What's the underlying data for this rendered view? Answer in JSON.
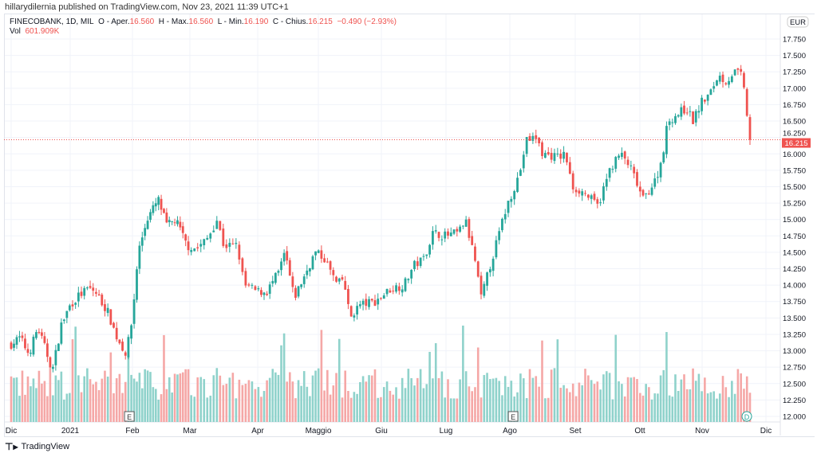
{
  "publish_line": "hillarydilernia published on TradingView.com, Nov 23, 2021 11:39 UTC+1",
  "legend": {
    "symbol": "FINECOBANK, 1D, MIL",
    "o_label": "O - Aper.",
    "o": "16.560",
    "h_label": "H - Max.",
    "h": "16.560",
    "l_label": "L - Min.",
    "l": "16.190",
    "c_label": "C - Chius.",
    "c": "16.215",
    "change": "−0.490 (−2.93%)",
    "vol_label": "Vol",
    "vol": "601.909K"
  },
  "currency": "EUR",
  "last_price": "16.215",
  "footer_brand": "TradingView",
  "colors": {
    "up": "#26a69a",
    "down": "#ef5350",
    "up_vol": "#8fd2cb",
    "down_vol": "#f5a7a6"
  },
  "chart_data": {
    "type": "candlestick",
    "title": "FINECOBANK, 1D, MIL",
    "ylim": [
      12.0,
      17.75
    ],
    "y_ticks": [
      "17.750",
      "17.500",
      "17.250",
      "17.000",
      "16.750",
      "16.500",
      "16.250",
      "16.000",
      "15.750",
      "15.500",
      "15.250",
      "15.000",
      "14.750",
      "14.500",
      "14.250",
      "14.000",
      "13.750",
      "13.500",
      "13.250",
      "13.000",
      "12.750",
      "12.500",
      "12.250",
      "12.000"
    ],
    "x_ticks": [
      "Dic",
      "2021",
      "Feb",
      "Mar",
      "Apr",
      "Maggio",
      "Giu",
      "Lug",
      "Ago",
      "Set",
      "Ott",
      "Nov",
      "Dic"
    ],
    "x_tick_month_index": [
      0,
      1,
      2,
      3,
      4,
      5,
      6,
      7,
      8,
      9,
      10,
      11,
      12
    ],
    "events": [
      {
        "label": "E",
        "month_pos": 1.95
      },
      {
        "label": "E",
        "month_pos": 8.05
      },
      {
        "label": "D",
        "month_pos": 11.7
      }
    ],
    "close_keypoints_by_month_pos": [
      [
        0,
        13.1
      ],
      [
        0.15,
        13.2
      ],
      [
        0.3,
        12.95
      ],
      [
        0.45,
        13.35
      ],
      [
        0.55,
        13.1
      ],
      [
        0.7,
        12.7
      ],
      [
        0.85,
        13.4
      ],
      [
        1.0,
        13.7
      ],
      [
        1.15,
        13.85
      ],
      [
        1.3,
        13.95
      ],
      [
        1.4,
        13.9
      ],
      [
        1.6,
        13.6
      ],
      [
        1.75,
        13.2
      ],
      [
        1.9,
        12.95
      ],
      [
        2.0,
        13.5
      ],
      [
        2.1,
        14.5
      ],
      [
        2.25,
        15.0
      ],
      [
        2.45,
        15.3
      ],
      [
        2.6,
        14.9
      ],
      [
        2.75,
        15.0
      ],
      [
        2.95,
        14.6
      ],
      [
        3.1,
        14.55
      ],
      [
        3.25,
        14.7
      ],
      [
        3.4,
        15.0
      ],
      [
        3.5,
        14.6
      ],
      [
        3.7,
        14.6
      ],
      [
        3.8,
        14.0
      ],
      [
        4.0,
        13.9
      ],
      [
        4.15,
        13.9
      ],
      [
        4.35,
        14.2
      ],
      [
        4.45,
        14.5
      ],
      [
        4.6,
        13.8
      ],
      [
        4.8,
        14.2
      ],
      [
        4.95,
        14.5
      ],
      [
        5.1,
        14.4
      ],
      [
        5.3,
        14.0
      ],
      [
        5.4,
        14.1
      ],
      [
        5.5,
        13.5
      ],
      [
        5.65,
        13.7
      ],
      [
        5.9,
        13.75
      ],
      [
        6.15,
        13.95
      ],
      [
        6.35,
        14.0
      ],
      [
        6.5,
        14.3
      ],
      [
        6.65,
        14.4
      ],
      [
        6.8,
        14.8
      ],
      [
        7.0,
        14.75
      ],
      [
        7.2,
        14.8
      ],
      [
        7.3,
        15.0
      ],
      [
        7.45,
        14.4
      ],
      [
        7.55,
        13.8
      ],
      [
        7.75,
        14.5
      ],
      [
        7.95,
        15.2
      ],
      [
        8.15,
        15.7
      ],
      [
        8.25,
        16.2
      ],
      [
        8.4,
        16.25
      ],
      [
        8.5,
        16.0
      ],
      [
        8.75,
        15.95
      ],
      [
        8.85,
        16.0
      ],
      [
        8.95,
        15.5
      ],
      [
        9.15,
        15.4
      ],
      [
        9.35,
        15.2
      ],
      [
        9.55,
        15.8
      ],
      [
        9.7,
        16.0
      ],
      [
        9.85,
        15.8
      ],
      [
        10.05,
        15.3
      ],
      [
        10.25,
        15.6
      ],
      [
        10.35,
        15.9
      ],
      [
        10.45,
        16.5
      ],
      [
        10.6,
        16.6
      ],
      [
        10.75,
        16.7
      ],
      [
        10.85,
        16.5
      ],
      [
        11.0,
        16.8
      ],
      [
        11.12,
        16.9
      ],
      [
        11.25,
        17.2
      ],
      [
        11.38,
        17.1
      ],
      [
        11.5,
        17.25
      ],
      [
        11.62,
        17.2
      ],
      [
        11.68,
        16.8
      ],
      [
        11.75,
        16.215
      ]
    ]
  }
}
